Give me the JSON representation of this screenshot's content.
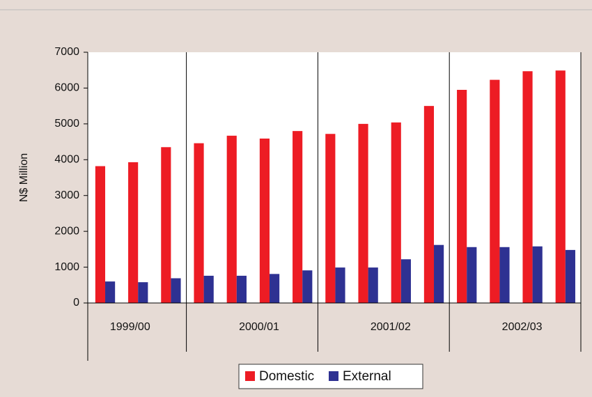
{
  "chart_data": {
    "type": "bar",
    "y_label": "N$ Million",
    "categories": [
      null,
      null,
      null,
      null,
      null,
      null,
      null,
      null,
      null,
      null,
      null,
      null,
      null,
      null,
      null
    ],
    "groups": [
      {
        "label": "1999/00",
        "size": 3
      },
      {
        "label": "2000/01",
        "size": 4
      },
      {
        "label": "2001/02",
        "size": 4
      },
      {
        "label": "2002/03",
        "size": 4
      }
    ],
    "series": [
      {
        "name": "Domestic",
        "color": "#ed1c24",
        "values": [
          3820,
          3930,
          4350,
          4460,
          4670,
          4590,
          4800,
          4720,
          5000,
          5040,
          5500,
          5950,
          6230,
          6470,
          6490
        ]
      },
      {
        "name": "External",
        "color": "#2e3192",
        "values": [
          600,
          580,
          690,
          760,
          760,
          810,
          910,
          990,
          990,
          1220,
          1620,
          1560,
          1560,
          1580,
          1480
        ]
      }
    ],
    "ylim": [
      0,
      7000
    ],
    "yticks": [
      0,
      1000,
      2000,
      3000,
      4000,
      5000,
      6000,
      7000
    ]
  }
}
